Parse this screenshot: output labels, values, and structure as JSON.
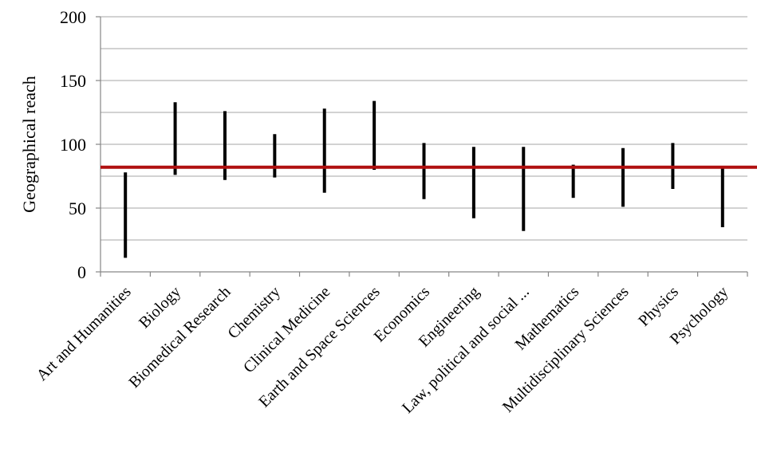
{
  "colors": {
    "range_bar": "#000000",
    "reference_line": "#b01010",
    "gridline": "#a6a6a6",
    "axis": "#868686"
  },
  "chart_data": {
    "type": "range",
    "title": "",
    "xlabel": "",
    "ylabel": "Geographical reach",
    "ylim": [
      0,
      200
    ],
    "yticks": [
      0,
      50,
      100,
      150,
      200
    ],
    "grid": true,
    "minor_grid_step": 25,
    "categories": [
      "Art and Humanities",
      "Biology",
      "Biomedical Research",
      "Chemistry",
      "Clinical Medicine",
      "Earth and Space Sciences",
      "Economics",
      "Engineering",
      "Law, political and social ...",
      "Mathematics",
      "Multidisciplinary Sciences",
      "Physics",
      "Psychology"
    ],
    "ranges": [
      {
        "low": 11,
        "high": 78
      },
      {
        "low": 76,
        "high": 133
      },
      {
        "low": 72,
        "high": 126
      },
      {
        "low": 74,
        "high": 108
      },
      {
        "low": 62,
        "high": 128
      },
      {
        "low": 80,
        "high": 134
      },
      {
        "low": 57,
        "high": 101
      },
      {
        "low": 42,
        "high": 98
      },
      {
        "low": 32,
        "high": 98
      },
      {
        "low": 58,
        "high": 84
      },
      {
        "low": 51,
        "high": 97
      },
      {
        "low": 65,
        "high": 101
      },
      {
        "low": 35,
        "high": 81
      }
    ],
    "reference_line": 82
  }
}
